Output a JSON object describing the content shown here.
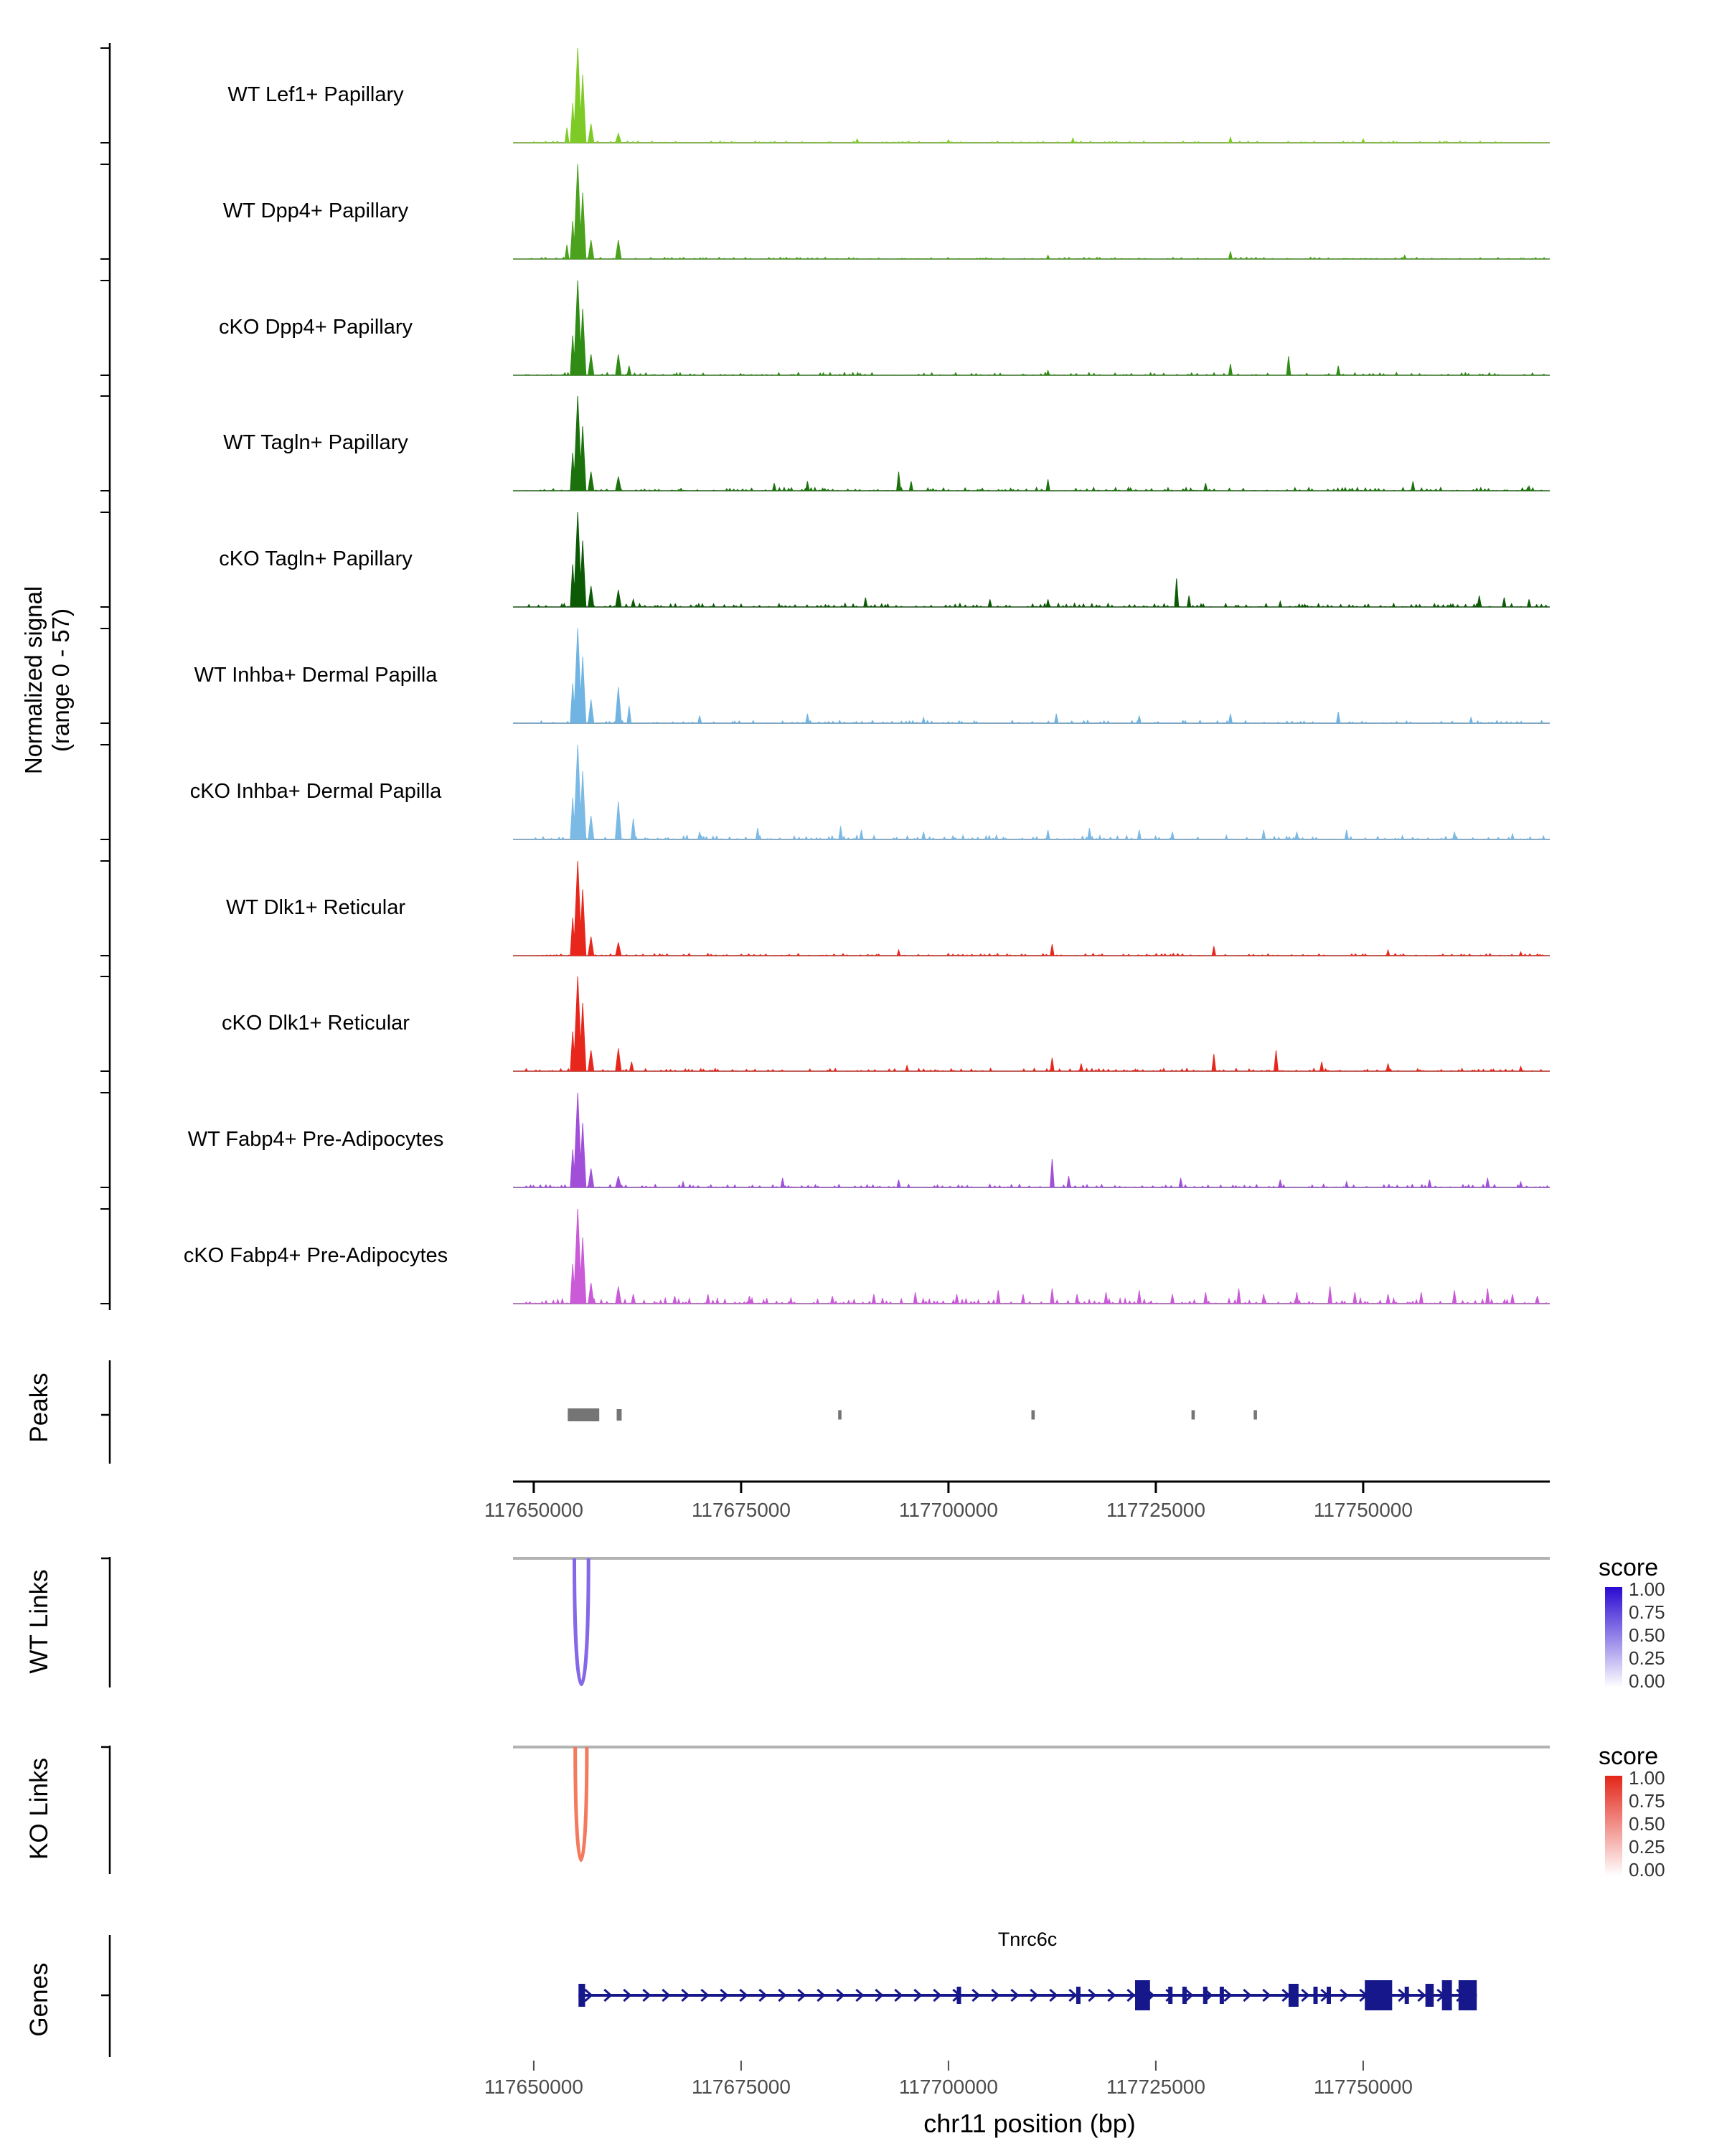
{
  "figure": {
    "y_axis_label": {
      "line1": "Normalized signal",
      "line2": "(range 0 - 57)"
    },
    "x_axis_title": "chr11 position (bp)",
    "section_labels": {
      "peaks": "Peaks",
      "wt_links": "WT Links",
      "ko_links": "KO Links",
      "genes": "Genes"
    },
    "score_legend_title": "score"
  },
  "chart_data": {
    "type": "genome-coverage",
    "chrom": "chr11",
    "region_start": 117647500,
    "region_end": 117772500,
    "x_ticks": [
      117650000,
      117675000,
      117700000,
      117725000,
      117750000
    ],
    "signal_range": [
      0,
      57
    ],
    "tracks": [
      {
        "id": "lef1-wt",
        "name": "WT Lef1+ Papillary",
        "color": "#7ecb27",
        "noise": 0.018,
        "peaks": [
          [
            117655300,
            1.0,
            1000
          ],
          [
            117655900,
            0.72,
            800
          ],
          [
            117654700,
            0.42,
            600
          ],
          [
            117656900,
            0.2,
            700
          ],
          [
            117654000,
            0.16,
            500
          ],
          [
            117660200,
            0.1,
            700
          ],
          [
            117689000,
            0.04,
            400
          ],
          [
            117700000,
            0.03,
            400
          ],
          [
            117715000,
            0.05,
            400
          ],
          [
            117734000,
            0.06,
            400
          ],
          [
            117750000,
            0.04,
            400
          ]
        ]
      },
      {
        "id": "dpp4-wt",
        "name": "WT Dpp4+ Papillary",
        "color": "#4aa21d",
        "noise": 0.02,
        "peaks": [
          [
            117655300,
            1.0,
            1000
          ],
          [
            117655900,
            0.7,
            800
          ],
          [
            117654700,
            0.4,
            600
          ],
          [
            117656900,
            0.2,
            700
          ],
          [
            117654000,
            0.15,
            500
          ],
          [
            117660200,
            0.2,
            700
          ],
          [
            117712000,
            0.04,
            400
          ],
          [
            117734000,
            0.08,
            450
          ],
          [
            117755000,
            0.04,
            400
          ]
        ]
      },
      {
        "id": "dpp4-cko",
        "name": "cKO Dpp4+ Papillary",
        "color": "#2f8c15",
        "noise": 0.03,
        "peaks": [
          [
            117655300,
            1.0,
            1000
          ],
          [
            117655900,
            0.7,
            800
          ],
          [
            117654700,
            0.42,
            600
          ],
          [
            117656900,
            0.22,
            700
          ],
          [
            117660200,
            0.22,
            700
          ],
          [
            117661500,
            0.1,
            500
          ],
          [
            117712000,
            0.05,
            400
          ],
          [
            117734000,
            0.12,
            450
          ],
          [
            117741000,
            0.2,
            500
          ],
          [
            117747000,
            0.1,
            450
          ]
        ]
      },
      {
        "id": "tagln-wt",
        "name": "WT Tagln+ Papillary",
        "color": "#1b720d",
        "noise": 0.035,
        "peaks": [
          [
            117655300,
            1.0,
            1000
          ],
          [
            117655900,
            0.68,
            800
          ],
          [
            117654700,
            0.4,
            600
          ],
          [
            117656900,
            0.2,
            700
          ],
          [
            117660200,
            0.15,
            700
          ],
          [
            117679000,
            0.08,
            450
          ],
          [
            117683000,
            0.1,
            450
          ],
          [
            117694000,
            0.2,
            500
          ],
          [
            117695500,
            0.1,
            450
          ],
          [
            117712000,
            0.12,
            450
          ],
          [
            117731000,
            0.08,
            450
          ],
          [
            117756000,
            0.1,
            450
          ],
          [
            117770000,
            0.05,
            400
          ]
        ]
      },
      {
        "id": "tagln-cko",
        "name": "cKO Tagln+ Papillary",
        "color": "#0d5a06",
        "noise": 0.04,
        "peaks": [
          [
            117655300,
            1.0,
            1000
          ],
          [
            117655900,
            0.7,
            800
          ],
          [
            117654700,
            0.45,
            600
          ],
          [
            117656900,
            0.22,
            700
          ],
          [
            117660200,
            0.18,
            700
          ],
          [
            117662000,
            0.08,
            500
          ],
          [
            117690000,
            0.1,
            450
          ],
          [
            117705000,
            0.08,
            450
          ],
          [
            117712000,
            0.08,
            450
          ],
          [
            117727500,
            0.3,
            500
          ],
          [
            117729000,
            0.12,
            450
          ],
          [
            117740000,
            0.06,
            400
          ],
          [
            117764000,
            0.12,
            500
          ],
          [
            117767000,
            0.1,
            450
          ],
          [
            117770000,
            0.08,
            450
          ]
        ]
      },
      {
        "id": "inhba-wt",
        "name": "WT Inhba+ Dermal Papilla",
        "color": "#6fb4e2",
        "noise": 0.03,
        "peaks": [
          [
            117655300,
            1.0,
            1000
          ],
          [
            117655900,
            0.7,
            800
          ],
          [
            117654700,
            0.42,
            600
          ],
          [
            117656900,
            0.25,
            700
          ],
          [
            117660200,
            0.38,
            750
          ],
          [
            117661500,
            0.18,
            500
          ],
          [
            117670000,
            0.08,
            450
          ],
          [
            117683000,
            0.1,
            450
          ],
          [
            117697000,
            0.06,
            400
          ],
          [
            117713000,
            0.1,
            450
          ],
          [
            117723000,
            0.08,
            450
          ],
          [
            117734000,
            0.1,
            450
          ],
          [
            117747000,
            0.12,
            470
          ],
          [
            117763000,
            0.06,
            400
          ]
        ]
      },
      {
        "id": "inhba-cko",
        "name": "cKO Inhba+ Dermal Papilla",
        "color": "#7cbae6",
        "noise": 0.045,
        "peaks": [
          [
            117655300,
            1.0,
            1000
          ],
          [
            117655900,
            0.72,
            800
          ],
          [
            117654700,
            0.44,
            600
          ],
          [
            117656900,
            0.25,
            700
          ],
          [
            117660200,
            0.4,
            750
          ],
          [
            117662000,
            0.22,
            550
          ],
          [
            117670000,
            0.08,
            450
          ],
          [
            117677000,
            0.12,
            470
          ],
          [
            117687000,
            0.14,
            470
          ],
          [
            117689500,
            0.1,
            450
          ],
          [
            117697000,
            0.08,
            450
          ],
          [
            117712000,
            0.1,
            450
          ],
          [
            117717000,
            0.12,
            470
          ],
          [
            117723000,
            0.1,
            450
          ],
          [
            117727000,
            0.08,
            450
          ],
          [
            117738000,
            0.1,
            450
          ],
          [
            117742000,
            0.08,
            450
          ],
          [
            117748000,
            0.1,
            450
          ],
          [
            117761000,
            0.08,
            450
          ],
          [
            117768000,
            0.06,
            400
          ]
        ]
      },
      {
        "id": "dlk1-wt",
        "name": "WT Dlk1+ Reticular",
        "color": "#e8271c",
        "noise": 0.025,
        "peaks": [
          [
            117655300,
            1.0,
            1000
          ],
          [
            117655900,
            0.7,
            800
          ],
          [
            117654700,
            0.4,
            600
          ],
          [
            117656900,
            0.2,
            700
          ],
          [
            117660200,
            0.14,
            700
          ],
          [
            117694000,
            0.06,
            400
          ],
          [
            117712500,
            0.12,
            470
          ],
          [
            117732000,
            0.1,
            450
          ],
          [
            117753000,
            0.06,
            400
          ],
          [
            117769000,
            0.04,
            400
          ]
        ]
      },
      {
        "id": "dlk1-cko",
        "name": "cKO Dlk1+ Reticular",
        "color": "#e8271c",
        "noise": 0.03,
        "peaks": [
          [
            117655300,
            1.0,
            1000
          ],
          [
            117655900,
            0.72,
            800
          ],
          [
            117654700,
            0.42,
            600
          ],
          [
            117656900,
            0.22,
            700
          ],
          [
            117660200,
            0.24,
            700
          ],
          [
            117661800,
            0.1,
            500
          ],
          [
            117695000,
            0.06,
            400
          ],
          [
            117712500,
            0.14,
            470
          ],
          [
            117716000,
            0.08,
            450
          ],
          [
            117732000,
            0.18,
            480
          ],
          [
            117739500,
            0.22,
            500
          ],
          [
            117745000,
            0.1,
            450
          ],
          [
            117753000,
            0.08,
            450
          ],
          [
            117769000,
            0.05,
            400
          ]
        ]
      },
      {
        "id": "fabp4-wt",
        "name": "WT Fabp4+ Pre-Adipocytes",
        "color": "#a14fd8",
        "noise": 0.035,
        "peaks": [
          [
            117655300,
            1.0,
            1000
          ],
          [
            117655900,
            0.68,
            800
          ],
          [
            117654700,
            0.4,
            600
          ],
          [
            117656900,
            0.2,
            700
          ],
          [
            117660200,
            0.12,
            700
          ],
          [
            117668000,
            0.06,
            400
          ],
          [
            117680000,
            0.1,
            450
          ],
          [
            117694000,
            0.08,
            450
          ],
          [
            117712500,
            0.3,
            500
          ],
          [
            117714500,
            0.12,
            450
          ],
          [
            117728000,
            0.1,
            450
          ],
          [
            117740000,
            0.08,
            450
          ],
          [
            117748000,
            0.06,
            400
          ],
          [
            117758000,
            0.08,
            450
          ],
          [
            117765000,
            0.1,
            450
          ],
          [
            117769000,
            0.06,
            400
          ]
        ]
      },
      {
        "id": "fabp4-cko",
        "name": "cKO Fabp4+ Pre-Adipocytes",
        "color": "#ca5ad8",
        "noise": 0.06,
        "peaks": [
          [
            117655300,
            1.0,
            1000
          ],
          [
            117655900,
            0.7,
            800
          ],
          [
            117654700,
            0.42,
            600
          ],
          [
            117656900,
            0.22,
            700
          ],
          [
            117660200,
            0.18,
            700
          ],
          [
            117662000,
            0.1,
            500
          ],
          [
            117667000,
            0.08,
            450
          ],
          [
            117671000,
            0.1,
            450
          ],
          [
            117676000,
            0.08,
            450
          ],
          [
            117681000,
            0.06,
            400
          ],
          [
            117686000,
            0.08,
            450
          ],
          [
            117691000,
            0.1,
            450
          ],
          [
            117696000,
            0.12,
            450
          ],
          [
            117701000,
            0.1,
            450
          ],
          [
            117706000,
            0.14,
            470
          ],
          [
            117709000,
            0.1,
            450
          ],
          [
            117712500,
            0.16,
            470
          ],
          [
            117715500,
            0.1,
            450
          ],
          [
            117719000,
            0.12,
            450
          ],
          [
            117723000,
            0.14,
            470
          ],
          [
            117727000,
            0.1,
            450
          ],
          [
            117731000,
            0.12,
            450
          ],
          [
            117735000,
            0.16,
            470
          ],
          [
            117738000,
            0.1,
            450
          ],
          [
            117742000,
            0.12,
            450
          ],
          [
            117746000,
            0.18,
            480
          ],
          [
            117749000,
            0.12,
            450
          ],
          [
            117753000,
            0.1,
            450
          ],
          [
            117757000,
            0.12,
            450
          ],
          [
            117761000,
            0.14,
            470
          ],
          [
            117765000,
            0.16,
            470
          ],
          [
            117768000,
            0.1,
            450
          ],
          [
            117771000,
            0.08,
            450
          ]
        ]
      }
    ],
    "peaks_track": {
      "color": "#757575",
      "intervals": [
        [
          117654100,
          117657900,
          18
        ],
        [
          117660000,
          117660600,
          16
        ],
        [
          117686700,
          117687100,
          13
        ],
        [
          117710000,
          117710400,
          13
        ],
        [
          117729300,
          117729700,
          13
        ],
        [
          117736800,
          117737200,
          13
        ]
      ]
    },
    "links_tracks": [
      {
        "id": "wt",
        "label": "WT Links",
        "arc": {
          "start": 117654900,
          "end": 117656600,
          "depth": 176,
          "color": "#8568e8"
        },
        "legend": {
          "title": "score",
          "ticks": [
            "1.00",
            "0.75",
            "0.50",
            "0.25",
            "0.00"
          ],
          "color_top": "#2a0ad2",
          "color_bottom": "#ffffff"
        }
      },
      {
        "id": "ko",
        "label": "KO Links",
        "arc": {
          "start": 117655000,
          "end": 117656400,
          "depth": 158,
          "color": "#f47a5e"
        },
        "legend": {
          "title": "score",
          "ticks": [
            "1.00",
            "0.75",
            "0.50",
            "0.25",
            "0.00"
          ],
          "color_top": "#e32619",
          "color_bottom": "#ffffff"
        }
      }
    ],
    "gene_track": {
      "gene": "Tnrc6c",
      "color": "#17178c",
      "strand": "+",
      "start": 117655400,
      "end": 117763700,
      "exons": [
        [
          117655400,
          117656200,
          2
        ],
        [
          117701000,
          117701500,
          1
        ],
        [
          117715400,
          117715900,
          1
        ],
        [
          117722500,
          117724300,
          3
        ],
        [
          117726500,
          117726900,
          1
        ],
        [
          117728200,
          117728600,
          1
        ],
        [
          117730700,
          117731100,
          1
        ],
        [
          117732700,
          117733100,
          1
        ],
        [
          117741000,
          117742200,
          2
        ],
        [
          117744000,
          117744400,
          1
        ],
        [
          117745600,
          117746000,
          1
        ],
        [
          117750200,
          117753500,
          3
        ],
        [
          117755000,
          117755400,
          1
        ],
        [
          117757500,
          117758500,
          2
        ],
        [
          117759500,
          117760700,
          3
        ],
        [
          117761500,
          117763700,
          3
        ]
      ]
    }
  }
}
